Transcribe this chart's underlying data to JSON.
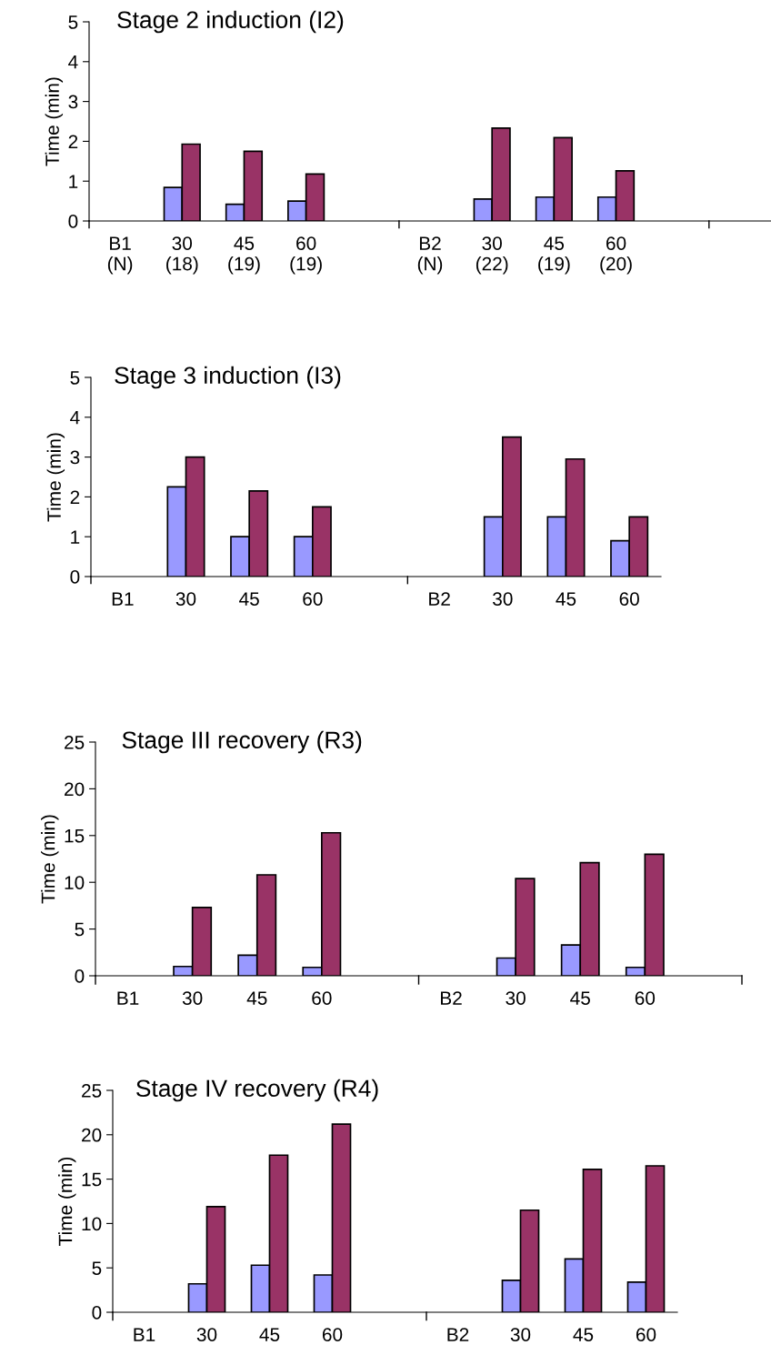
{
  "chart_data": [
    {
      "type": "bar",
      "title": "Stage 2 induction (I2)",
      "ylabel": "Time (min)",
      "categories": [
        "B1\n(N)",
        "30\n(18)",
        "45\n(19)",
        "60\n(19)",
        null,
        "B2\n(N)",
        "30\n(22)",
        "45\n(19)",
        "60\n(20)",
        null,
        null
      ],
      "ylim": [
        0,
        5
      ],
      "yticks": [
        0,
        1,
        2,
        3,
        4,
        5
      ],
      "grid": false,
      "legend": false,
      "series": [
        {
          "color": "#9999ff",
          "values": [
            null,
            0.84,
            0.42,
            0.5,
            null,
            null,
            0.55,
            0.6,
            0.6,
            null,
            null
          ]
        },
        {
          "color": "#993366",
          "values": [
            null,
            1.93,
            1.75,
            1.18,
            null,
            null,
            2.33,
            2.09,
            1.26,
            null,
            null
          ]
        }
      ]
    },
    {
      "type": "bar",
      "title": "Stage 3 induction (I3)",
      "ylabel": "Time (min)",
      "categories": [
        "B1",
        "30",
        "45",
        "60",
        null,
        "B2",
        "30",
        "45",
        "60"
      ],
      "ylim": [
        0,
        5
      ],
      "yticks": [
        0,
        1,
        2,
        3,
        4,
        5
      ],
      "grid": false,
      "legend": false,
      "series": [
        {
          "color": "#9999ff",
          "values": [
            null,
            2.25,
            1.0,
            1.0,
            null,
            null,
            1.5,
            1.5,
            0.9
          ]
        },
        {
          "color": "#993366",
          "values": [
            null,
            3.0,
            2.15,
            1.75,
            null,
            null,
            3.5,
            2.95,
            1.5
          ]
        }
      ]
    },
    {
      "type": "bar",
      "title": "Stage III recovery (R3)",
      "ylabel": "Time (min)",
      "categories": [
        "B1",
        "30",
        "45",
        "60",
        null,
        "B2",
        "30",
        "45",
        "60",
        null
      ],
      "ylim": [
        0,
        25
      ],
      "yticks": [
        0,
        5,
        10,
        15,
        20,
        25
      ],
      "grid": false,
      "legend": false,
      "series": [
        {
          "color": "#9999ff",
          "values": [
            null,
            1.0,
            2.2,
            0.9,
            null,
            null,
            1.9,
            3.3,
            0.9,
            null
          ]
        },
        {
          "color": "#993366",
          "values": [
            null,
            7.3,
            10.8,
            15.3,
            null,
            null,
            10.4,
            12.1,
            13.0,
            null
          ]
        }
      ]
    },
    {
      "type": "bar",
      "title": "Stage IV recovery (R4)",
      "ylabel": "Time (min)",
      "categories": [
        "B1",
        "30",
        "45",
        "60",
        null,
        "B2",
        "30",
        "45",
        "60"
      ],
      "ylim": [
        0,
        25
      ],
      "yticks": [
        0,
        5,
        10,
        15,
        20,
        25
      ],
      "grid": false,
      "legend": false,
      "series": [
        {
          "color": "#9999ff",
          "values": [
            null,
            3.2,
            5.3,
            4.2,
            null,
            null,
            3.6,
            6.0,
            3.4
          ]
        },
        {
          "color": "#993366",
          "values": [
            null,
            11.9,
            17.7,
            21.2,
            null,
            null,
            11.5,
            16.1,
            16.5
          ]
        }
      ]
    }
  ]
}
